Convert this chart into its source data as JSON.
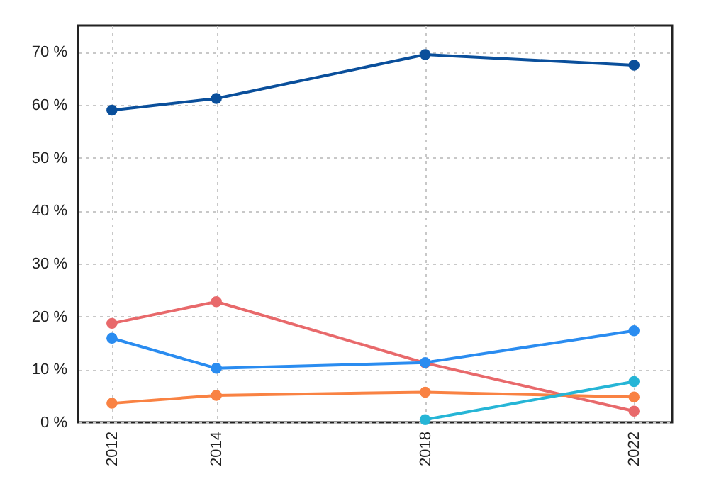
{
  "chart_data": {
    "type": "line",
    "x": [
      2012,
      2014,
      2018,
      2022
    ],
    "xlim": [
      2011.35,
      2022.73
    ],
    "xticks": [
      2012,
      2014,
      2018,
      2022
    ],
    "ylim": [
      0,
      75
    ],
    "yticks": [
      {
        "value": 0,
        "label": "0 %"
      },
      {
        "value": 10,
        "label": "10 %"
      },
      {
        "value": 20,
        "label": "20 %"
      },
      {
        "value": 30,
        "label": "30 %"
      },
      {
        "value": 40,
        "label": "40 %"
      },
      {
        "value": 50,
        "label": "50 %"
      },
      {
        "value": 60,
        "label": "60 %"
      },
      {
        "value": 70,
        "label": "70 %"
      }
    ],
    "grid": true,
    "marker": "circle",
    "line_style": "solid",
    "series": [
      {
        "color": "#0a4f9b",
        "values": [
          59,
          61.2,
          69.5,
          67.5
        ]
      },
      {
        "color": "#e8696b",
        "values": [
          18.7,
          22.8,
          11.2,
          2.1
        ]
      },
      {
        "color": "#2a8cf0",
        "values": [
          15.9,
          10.2,
          11.3,
          17.3
        ]
      },
      {
        "color": "#f98243",
        "values": [
          3.6,
          5.1,
          5.7,
          4.8
        ]
      },
      {
        "color": "#26b5d6",
        "values": [
          null,
          null,
          0.5,
          7.7
        ]
      }
    ]
  }
}
